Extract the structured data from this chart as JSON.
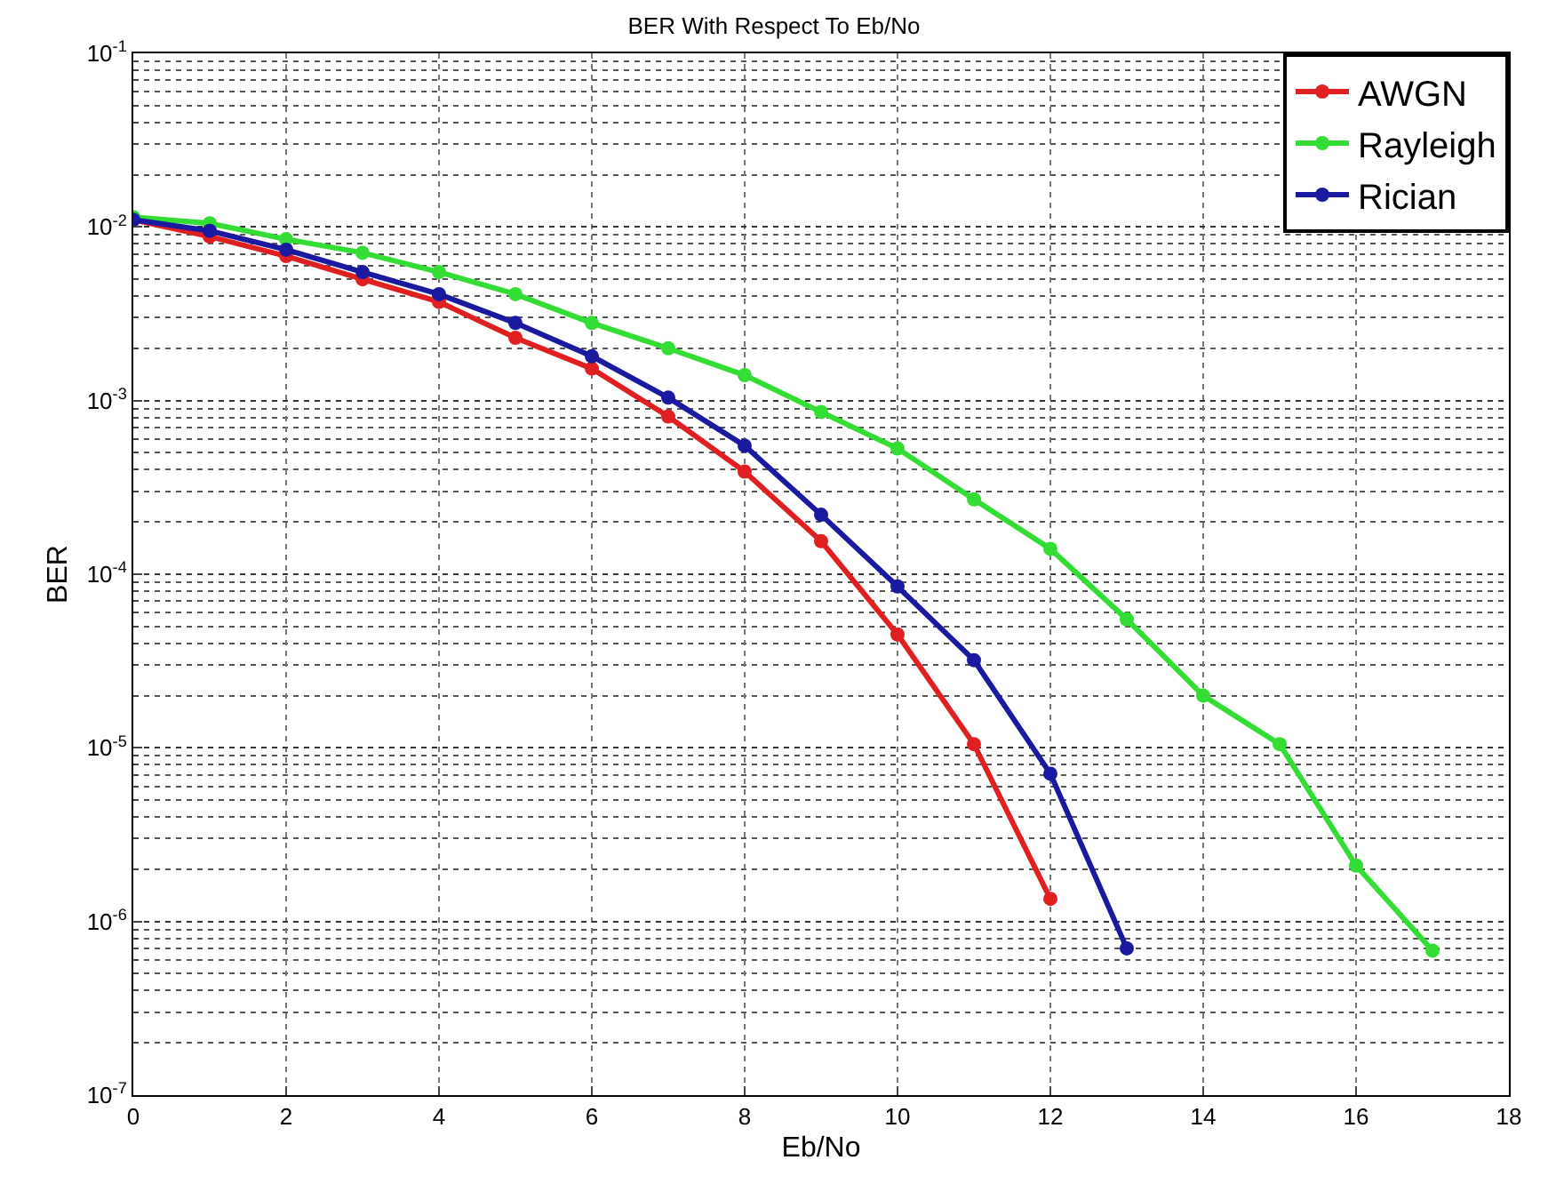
{
  "chart_data": {
    "type": "line",
    "title": "BER With Respect To Eb/No",
    "xlabel": "Eb/No",
    "ylabel": "BER",
    "series": [
      {
        "name": "AWGN",
        "color": "#e02020",
        "x": [
          0,
          1,
          2,
          3,
          4,
          5,
          6,
          7,
          8,
          9,
          10,
          11,
          12
        ],
        "values": [
          0.011,
          0.0088,
          0.0068,
          0.005,
          0.0037,
          0.0023,
          0.00153,
          0.00081,
          0.00039,
          0.000155,
          4.5e-05,
          1.05e-05,
          1.35e-06
        ]
      },
      {
        "name": "Rayleigh",
        "color": "#33dd33",
        "x": [
          0,
          1,
          2,
          3,
          4,
          5,
          6,
          7,
          8,
          9,
          10,
          11,
          12,
          13,
          14,
          15,
          16,
          17
        ],
        "values": [
          0.0114,
          0.0105,
          0.0085,
          0.0071,
          0.0055,
          0.0041,
          0.0028,
          0.002,
          0.0014,
          0.00086,
          0.00053,
          0.00027,
          0.00014,
          5.5e-05,
          2e-05,
          1.05e-05,
          2.1e-06,
          6.8e-07
        ]
      },
      {
        "name": "Rician",
        "color": "#1a1aa0",
        "x": [
          0,
          1,
          2,
          3,
          4,
          5,
          6,
          7,
          8,
          9,
          10,
          11,
          12,
          13
        ],
        "values": [
          0.011,
          0.0095,
          0.0074,
          0.0055,
          0.0041,
          0.0028,
          0.0018,
          0.00104,
          0.00055,
          0.00022,
          8.5e-05,
          3.2e-05,
          7.1e-06,
          7e-07
        ]
      }
    ],
    "log": "y",
    "xlim": [
      0,
      18
    ],
    "xticks": [
      0,
      2,
      4,
      6,
      8,
      10,
      12,
      14,
      16,
      18
    ],
    "ylim": [
      1e-07,
      0.1
    ],
    "yticks": [
      {
        "value": 1e-07,
        "label": "10$^{-7}$"
      },
      {
        "value": 1e-06,
        "label": "10$^{-6}$"
      },
      {
        "value": 1e-05,
        "label": "10$^{-5}$"
      },
      {
        "value": 0.0001,
        "label": "10$^{-4}$"
      },
      {
        "value": 0.001,
        "label": "10$^{-3}$"
      },
      {
        "value": 0.01,
        "label": "10$^{-2}$"
      },
      {
        "value": 0.1,
        "label": "10$^{-1}$"
      }
    ],
    "grid": true,
    "legend": "top right",
    "marker": "circle",
    "line_style": "solid"
  }
}
